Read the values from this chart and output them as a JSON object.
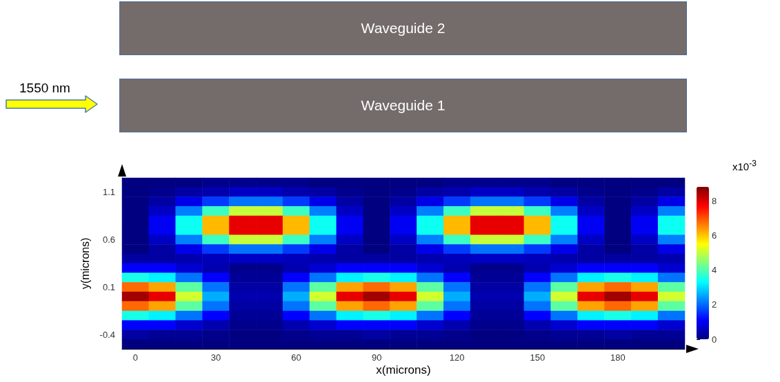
{
  "chart_data": {
    "type": "heatmap",
    "xlabel": "x(microns)",
    "ylabel": "y(microns)",
    "clabel": "x10$^{-3}$",
    "annotations": [
      "Waveguide 2",
      "Waveguide 1",
      "1550 nm"
    ],
    "categories": [
      "0",
      null,
      null,
      "30",
      null,
      null,
      "60",
      null,
      null,
      "90",
      null,
      null,
      "120",
      null,
      null,
      "150",
      null,
      null,
      "180",
      null,
      null
    ],
    "y_categories": [
      null,
      "1.1",
      null,
      null,
      null,
      null,
      "0.6",
      null,
      null,
      null,
      null,
      "0.1",
      null,
      null,
      null,
      null,
      "-0.4",
      null
    ],
    "clim": [
      0,
      8.8
    ],
    "cticks": [
      0,
      2,
      4,
      6,
      8
    ],
    "colors": [
      "#000080",
      "#0000ff",
      "#0080ff",
      "#00ffff",
      "#80ff80",
      "#ffff00",
      "#ff8000",
      "#ff0000",
      "#800000"
    ],
    "cells": [
      [
        0,
        0,
        0,
        0.1,
        0.1,
        0.1,
        0.1,
        0,
        0,
        0,
        0,
        0,
        0.1,
        0.1,
        0.1,
        0.1,
        0,
        0,
        0,
        0,
        0
      ],
      [
        0,
        0.1,
        0.3,
        0.4,
        0.6,
        0.6,
        0.4,
        0.3,
        0.1,
        0,
        0.1,
        0.3,
        0.4,
        0.6,
        0.6,
        0.4,
        0.3,
        0.1,
        0,
        0.1,
        0.3
      ],
      [
        0,
        0.3,
        0.9,
        1.6,
        2.1,
        2.1,
        1.6,
        0.9,
        0.3,
        0,
        0.3,
        0.9,
        1.6,
        2.1,
        2.1,
        1.6,
        0.9,
        0.3,
        0,
        0.3,
        0.9
      ],
      [
        0,
        0.6,
        2.2,
        3.8,
        5.0,
        5.0,
        3.8,
        2.2,
        0.6,
        0,
        0.6,
        2.2,
        3.8,
        5.0,
        5.0,
        3.8,
        2.2,
        0.6,
        0,
        0.6,
        2.2
      ],
      [
        0,
        1.0,
        3.4,
        6.1,
        7.9,
        7.9,
        6.1,
        3.4,
        1.0,
        0,
        1.0,
        3.4,
        6.1,
        7.9,
        7.9,
        6.1,
        3.4,
        1.0,
        0,
        1.0,
        3.4
      ],
      [
        0,
        1.0,
        3.4,
        6.1,
        7.9,
        7.9,
        6.1,
        3.4,
        1.0,
        0,
        1.0,
        3.4,
        6.1,
        7.9,
        7.9,
        6.1,
        3.4,
        1.0,
        0,
        1.0,
        3.4
      ],
      [
        0,
        0.6,
        2.2,
        3.8,
        5.0,
        5.0,
        3.8,
        2.2,
        0.6,
        0,
        0.6,
        2.2,
        3.8,
        5.0,
        5.0,
        3.8,
        2.2,
        0.6,
        0,
        0.6,
        2.2
      ],
      [
        0,
        0.3,
        0.9,
        1.6,
        2.1,
        2.1,
        1.6,
        0.9,
        0.3,
        0,
        0.3,
        0.9,
        1.6,
        2.1,
        2.1,
        1.6,
        0.9,
        0.3,
        0,
        0.3,
        0.9
      ],
      [
        0.3,
        0.3,
        0.4,
        0.5,
        0.6,
        0.6,
        0.5,
        0.4,
        0.3,
        0.3,
        0.3,
        0.4,
        0.5,
        0.6,
        0.6,
        0.5,
        0.4,
        0.3,
        0.3,
        0.3,
        0.4
      ],
      [
        1.1,
        1.1,
        0.7,
        0.4,
        0.1,
        0.1,
        0.4,
        0.7,
        1.1,
        1.1,
        1.1,
        0.7,
        0.4,
        0.1,
        0.1,
        0.4,
        0.7,
        1.1,
        1.1,
        1.1,
        0.7
      ],
      [
        3.5,
        3.2,
        2.1,
        1.1,
        0.2,
        0.2,
        1.1,
        2.1,
        3.2,
        3.5,
        3.2,
        2.1,
        1.1,
        0.2,
        0.2,
        1.1,
        2.1,
        3.2,
        3.5,
        3.2,
        2.1
      ],
      [
        6.8,
        6.3,
        4.1,
        2.1,
        0.3,
        0.3,
        2.1,
        4.1,
        6.3,
        6.8,
        6.3,
        4.1,
        2.1,
        0.3,
        0.3,
        2.1,
        4.1,
        6.3,
        6.8,
        6.3,
        4.1
      ],
      [
        8.5,
        7.9,
        5.1,
        2.6,
        0.4,
        0.4,
        2.6,
        5.1,
        7.9,
        8.5,
        7.9,
        5.1,
        2.6,
        0.4,
        0.4,
        2.6,
        5.1,
        7.9,
        8.5,
        7.9,
        5.1
      ],
      [
        6.8,
        6.3,
        4.1,
        2.1,
        0.3,
        0.3,
        2.1,
        4.1,
        6.3,
        6.8,
        6.3,
        4.1,
        2.1,
        0.3,
        0.3,
        2.1,
        4.1,
        6.3,
        6.8,
        6.3,
        4.1
      ],
      [
        3.5,
        3.2,
        2.1,
        1.1,
        0.2,
        0.2,
        1.1,
        2.1,
        3.2,
        3.5,
        3.2,
        2.1,
        1.1,
        0.2,
        0.2,
        1.1,
        2.1,
        3.2,
        3.5,
        3.2,
        2.1
      ],
      [
        1.1,
        1.1,
        0.7,
        0.4,
        0.1,
        0.1,
        0.4,
        0.7,
        1.1,
        1.1,
        1.1,
        0.7,
        0.4,
        0.1,
        0.1,
        0.4,
        0.7,
        1.1,
        1.1,
        1.1,
        0.7
      ],
      [
        0.3,
        0.2,
        0.2,
        0.1,
        0,
        0,
        0.1,
        0.2,
        0.2,
        0.3,
        0.2,
        0.2,
        0.1,
        0,
        0,
        0.1,
        0.2,
        0.2,
        0.3,
        0.2,
        0.2
      ],
      [
        0,
        0,
        0,
        0,
        0,
        0,
        0,
        0,
        0,
        0,
        0,
        0,
        0,
        0,
        0,
        0,
        0,
        0,
        0,
        0,
        0
      ]
    ]
  }
}
